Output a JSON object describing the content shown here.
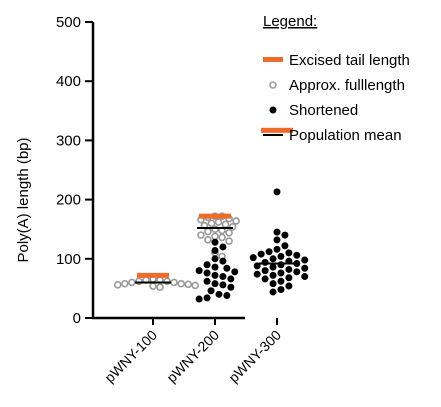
{
  "chart_data": {
    "type": "scatter",
    "ylabel": "Poly(A) length (bp)",
    "xlabel": "",
    "ylim": [
      0,
      500
    ],
    "yticks": [
      0,
      100,
      200,
      300,
      400,
      500
    ],
    "ytick_labels": [
      "0",
      "100",
      "200",
      "300",
      "400",
      "500"
    ],
    "categories": [
      "pWNY-100",
      "pWNY-200",
      "pWNY-300"
    ],
    "legend": {
      "title": "Legend:",
      "items": [
        {
          "label": "Excised tail length",
          "marker": "orange-bar"
        },
        {
          "label": "Approx. fulllength",
          "marker": "open-circle"
        },
        {
          "label": "Shortened",
          "marker": "filled-circle"
        },
        {
          "label": "Population mean",
          "marker": "black-line"
        }
      ]
    },
    "colors": {
      "excised": "#ef6b2a",
      "approx_full": "#9a9a9a",
      "shortened": "#000000",
      "mean": "#000000"
    },
    "series": [
      {
        "name": "Excised tail length",
        "values": [
          72,
          172,
          317
        ]
      },
      {
        "name": "Population mean",
        "values": [
          60,
          152,
          92
        ]
      },
      {
        "name": "Approx. fulllength",
        "points": [
          {
            "category": "pWNY-100",
            "y": [
              66,
              64,
              64,
              62,
              62,
              60,
              60,
              58,
              58,
              57,
              56,
              55,
              54,
              52
            ]
          },
          {
            "category": "pWNY-200",
            "y": [
              172,
              172,
              170,
              168,
              166,
              164,
              162,
              160,
              158,
              156,
              154,
              150,
              148,
              146,
              144,
              140,
              138,
              136,
              132,
              130,
              110,
              104
            ]
          }
        ]
      },
      {
        "name": "Shortened",
        "points": [
          {
            "category": "pWNY-200",
            "y": [
              128,
              120,
              114,
              100,
              96,
              90,
              86,
              84,
              80,
              78,
              76,
              72,
              70,
              66,
              62,
              58,
              56,
              52,
              46,
              40,
              38,
              34,
              32
            ]
          },
          {
            "category": "pWNY-300",
            "y": [
              213,
              145,
              140,
              132,
              122,
              116,
              112,
              110,
              108,
              106,
              104,
              102,
              100,
              98,
              96,
              94,
              92,
              90,
              88,
              86,
              84,
              82,
              80,
              78,
              76,
              74,
              72,
              70,
              68,
              66,
              62,
              58,
              54,
              48,
              44
            ]
          }
        ]
      }
    ]
  }
}
